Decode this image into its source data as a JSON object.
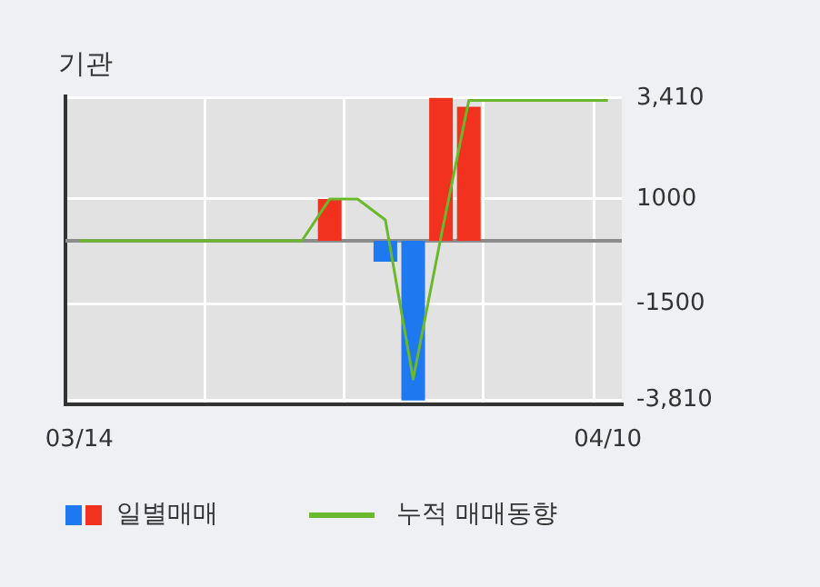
{
  "chart_data": {
    "type": "bar",
    "title": "기관",
    "categories": [
      "03/14",
      null,
      null,
      null,
      null,
      null,
      null,
      null,
      null,
      null,
      null,
      null,
      null,
      null,
      null,
      null,
      null,
      null,
      null,
      "04/10"
    ],
    "series": [
      {
        "name": "일별매매",
        "values": [
          0,
          0,
          0,
          0,
          0,
          0,
          0,
          0,
          0,
          1000,
          0,
          -500,
          -3810,
          3410,
          3200,
          0,
          0,
          0,
          0,
          0
        ],
        "colors": [
          "#f0321e",
          "#f0321e",
          "#f0321e",
          "#f0321e",
          "#f0321e",
          "#f0321e",
          "#f0321e",
          "#f0321e",
          "#f0321e",
          "#f0321e",
          "#f0321e",
          "#1e78f0",
          "#1e78f0",
          "#f0321e",
          "#f0321e",
          "#f0321e",
          "#f0321e",
          "#f0321e",
          "#f0321e",
          "#f0321e"
        ]
      },
      {
        "name": "누적 매매동향",
        "type": "line",
        "color": "#6ab82e",
        "values": [
          0,
          0,
          0,
          0,
          0,
          0,
          0,
          0,
          0,
          1000,
          1000,
          500,
          -3300,
          100,
          3350,
          3350,
          3350,
          3350,
          3350,
          3350
        ]
      }
    ],
    "ylim": [
      -3900,
      3450
    ],
    "yticks": [
      {
        "value": 3410,
        "label": "3,410"
      },
      1000,
      -1500,
      {
        "value": -3810,
        "label": "-3,810"
      }
    ],
    "ref_lines": [
      {
        "axis": "y",
        "value": 0,
        "color": "#8c8c8c"
      }
    ],
    "grid": true,
    "legend": "bottom",
    "marker": "none",
    "line_style": "solid"
  }
}
